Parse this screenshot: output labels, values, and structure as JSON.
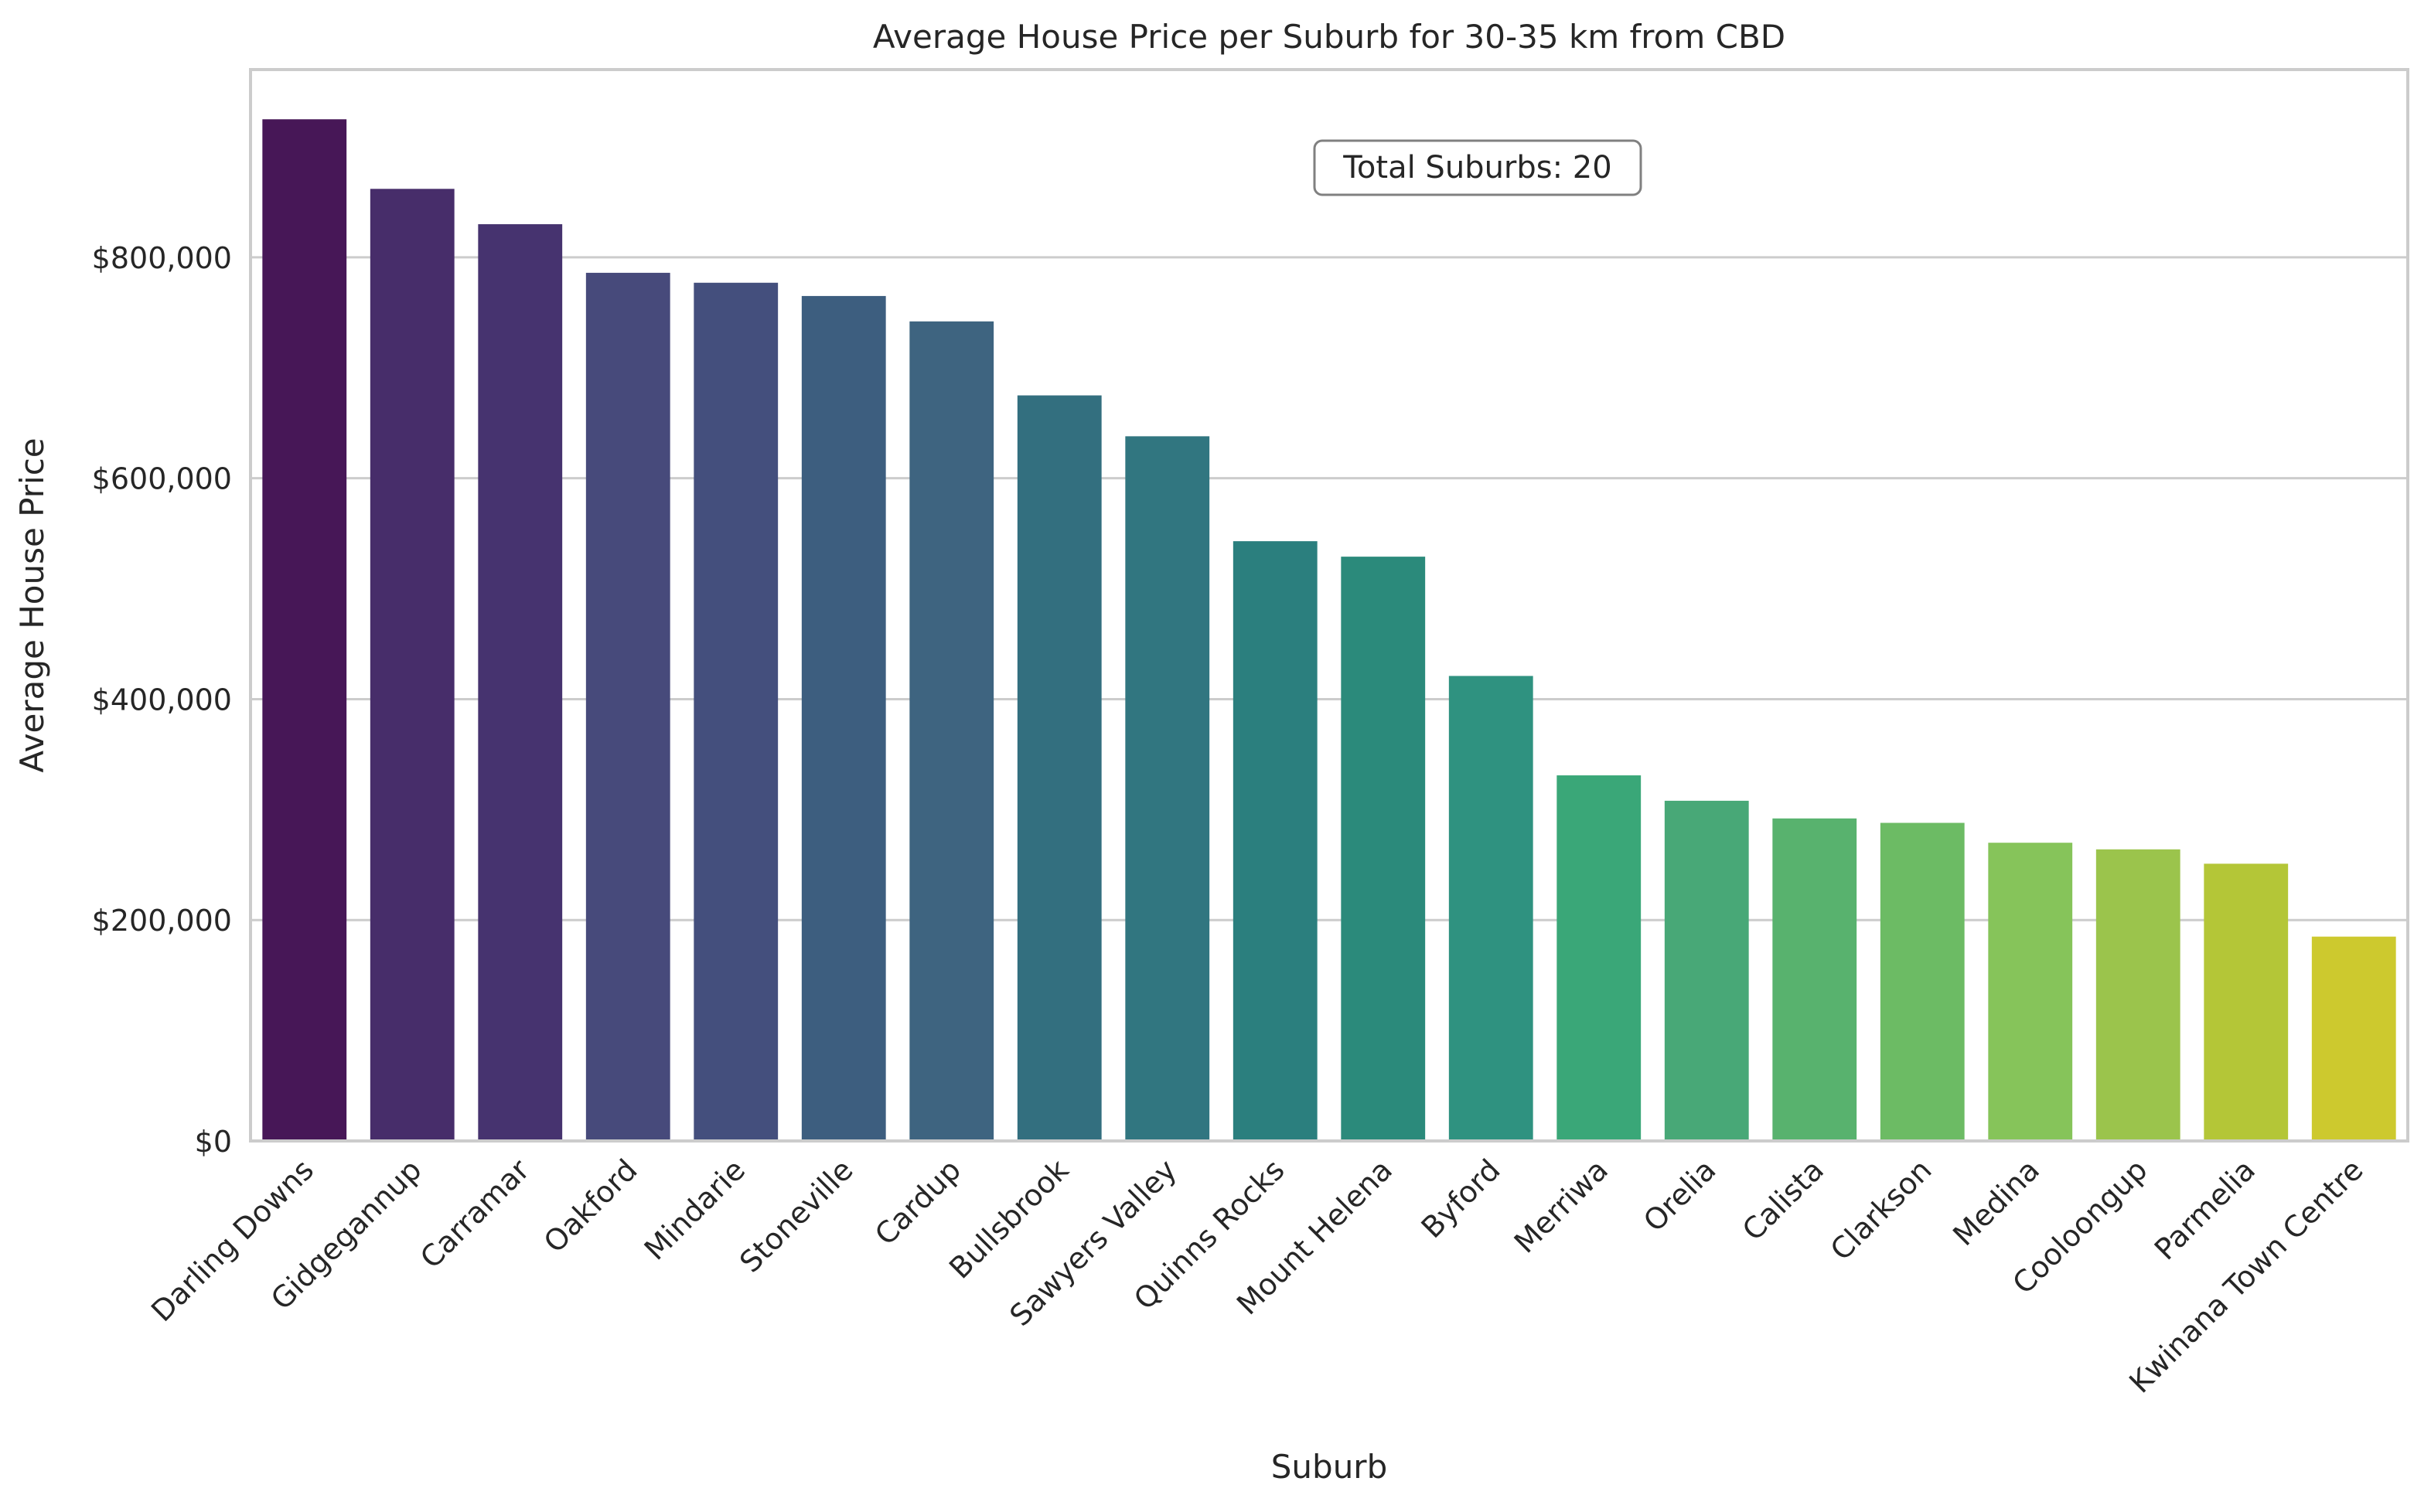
{
  "chart_data": {
    "type": "bar",
    "title": "Average House Price per Suburb for 30-35 km from CBD",
    "xlabel": "Suburb",
    "ylabel": "Average House Price",
    "categories": [
      "Darling Downs",
      "Gidgegannup",
      "Carramar",
      "Oakford",
      "Mindarie",
      "Stoneville",
      "Cardup",
      "Bullsbrook",
      "Sawyers Valley",
      "Quinns Rocks",
      "Mount Helena",
      "Byford",
      "Merriwa",
      "Orelia",
      "Calista",
      "Clarkson",
      "Medina",
      "Cooloongup",
      "Parmelia",
      "Kwinana Town Centre"
    ],
    "values": [
      925000,
      862000,
      830000,
      786000,
      777000,
      765000,
      742000,
      675000,
      638000,
      543000,
      529000,
      421000,
      331000,
      308000,
      292000,
      288000,
      270000,
      264000,
      251000,
      185000
    ],
    "ylim": [
      0,
      970000
    ],
    "yticks": [
      0,
      200000,
      400000,
      600000,
      800000
    ],
    "ytick_labels": [
      "$0",
      "$200,000",
      "$400,000",
      "$600,000",
      "$800,000"
    ],
    "grid": "y-axis",
    "annotation": "Total Suburbs: 20",
    "colors": [
      "#471757",
      "#472d6a",
      "#46336f",
      "#474a7b",
      "#444f7d",
      "#3d5e7f",
      "#3e6480",
      "#336f7f",
      "#317680",
      "#2b7f7e",
      "#2b8a7b",
      "#2f9280",
      "#3aa778",
      "#48a877",
      "#58b26e",
      "#6cbb64",
      "#86c45a",
      "#9bc44c",
      "#b4c637",
      "#cdc92e"
    ]
  }
}
